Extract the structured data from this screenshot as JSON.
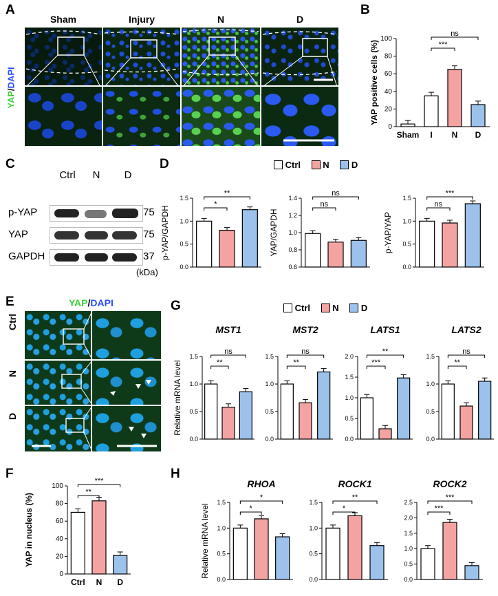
{
  "panels": {
    "A": {
      "label": "A",
      "groups": [
        "Sham",
        "Injury",
        "N",
        "D"
      ],
      "stain_a": "YAP",
      "stain_sep": "/",
      "stain_b": "DAPI"
    },
    "B": {
      "label": "B"
    },
    "C": {
      "label": "C",
      "lanes": [
        "Ctrl",
        "N",
        "D"
      ],
      "bands": [
        "p-YAP",
        "YAP",
        "GAPDH"
      ],
      "sizes": [
        "75",
        "75",
        "37"
      ],
      "unit": "(kDa)"
    },
    "D": {
      "label": "D"
    },
    "E": {
      "label": "E",
      "stain_a": "YAP",
      "stain_sep": "/",
      "stain_b": "DAPI",
      "rows": [
        "Ctrl",
        "N",
        "D"
      ]
    },
    "F": {
      "label": "F"
    },
    "G": {
      "label": "G"
    },
    "H": {
      "label": "H"
    }
  },
  "legend": {
    "items": [
      {
        "name": "Ctrl",
        "color": "#ffffff"
      },
      {
        "name": "N",
        "color": "#f4a3a3"
      },
      {
        "name": "D",
        "color": "#9cc2ec"
      }
    ]
  },
  "colors": {
    "ctrl": "#ffffff",
    "N": "#f4a3a3",
    "D": "#9cc2ec",
    "yap": "#3bd23b",
    "dapi": "#2a4cff"
  },
  "chart_data": [
    {
      "id": "B",
      "type": "bar",
      "ylabel": "YAP positive cells  (%)",
      "categories": [
        "Sham",
        "I",
        "N",
        "D"
      ],
      "values": [
        3,
        35,
        65,
        25
      ],
      "ylim": [
        0,
        100
      ],
      "yticks": [
        0,
        20,
        40,
        60,
        80,
        100
      ],
      "sig": [
        {
          "from": 1,
          "to": 2,
          "label": "***"
        },
        {
          "from": 1,
          "to": 3,
          "label": "ns"
        }
      ]
    },
    {
      "id": "D1",
      "type": "bar",
      "ylabel": "p-YAP/GAPDH",
      "categories": [
        "Ctrl",
        "N",
        "D"
      ],
      "values": [
        1.0,
        0.8,
        1.25
      ],
      "ylim": [
        0,
        1.5
      ],
      "yticks": [
        0,
        0.5,
        1.0,
        1.5
      ],
      "sig": [
        {
          "from": 0,
          "to": 1,
          "label": "*"
        },
        {
          "from": 0,
          "to": 2,
          "label": "**"
        }
      ]
    },
    {
      "id": "D2",
      "type": "bar",
      "ylabel": "YAP/GAPDH",
      "categories": [
        "Ctrl",
        "N",
        "D"
      ],
      "values": [
        0.99,
        0.89,
        0.91
      ],
      "ylim": [
        0.6,
        1.4
      ],
      "yticks": [
        0.6,
        0.8,
        1.0,
        1.2,
        1.4
      ],
      "sig": [
        {
          "from": 0,
          "to": 1,
          "label": "ns"
        },
        {
          "from": 0,
          "to": 2,
          "label": "ns"
        }
      ]
    },
    {
      "id": "D3",
      "type": "bar",
      "ylabel": "p-YAP/YAP",
      "categories": [
        "Ctrl",
        "N",
        "D"
      ],
      "values": [
        1.0,
        0.96,
        1.38
      ],
      "ylim": [
        0,
        1.5
      ],
      "yticks": [
        0,
        0.5,
        1.0,
        1.5
      ],
      "sig": [
        {
          "from": 0,
          "to": 1,
          "label": "ns"
        },
        {
          "from": 0,
          "to": 2,
          "label": "***"
        }
      ]
    },
    {
      "id": "F",
      "type": "bar",
      "ylabel": "YAP in nucleus (%)",
      "categories": [
        "Ctrl",
        "N",
        "D"
      ],
      "values": [
        70,
        83,
        21
      ],
      "ylim": [
        0,
        100
      ],
      "yticks": [
        0,
        20,
        40,
        60,
        80,
        100
      ],
      "sig": [
        {
          "from": 0,
          "to": 1,
          "label": "**"
        },
        {
          "from": 0,
          "to": 2,
          "label": "***"
        }
      ]
    },
    {
      "id": "G1",
      "type": "bar",
      "title": "MST1",
      "ylabel": "Relative mRNA level",
      "categories": [
        "Ctrl",
        "N",
        "D"
      ],
      "values": [
        1.0,
        0.58,
        0.86
      ],
      "ylim": [
        0,
        1.5
      ],
      "yticks": [
        0,
        0.5,
        1.0,
        1.5
      ],
      "sig": [
        {
          "from": 0,
          "to": 1,
          "label": "**"
        },
        {
          "from": 0,
          "to": 2,
          "label": "ns"
        }
      ]
    },
    {
      "id": "G2",
      "type": "bar",
      "title": "MST2",
      "ylabel": "",
      "categories": [
        "Ctrl",
        "N",
        "D"
      ],
      "values": [
        1.0,
        0.66,
        1.22
      ],
      "ylim": [
        0,
        1.5
      ],
      "yticks": [
        0,
        0.5,
        1.0,
        1.5
      ],
      "sig": [
        {
          "from": 0,
          "to": 1,
          "label": "**"
        },
        {
          "from": 0,
          "to": 2,
          "label": "ns"
        }
      ]
    },
    {
      "id": "G3",
      "type": "bar",
      "title": "LATS1",
      "ylabel": "",
      "categories": [
        "Ctrl",
        "N",
        "D"
      ],
      "values": [
        1.0,
        0.25,
        1.48
      ],
      "ylim": [
        0,
        2.0
      ],
      "yticks": [
        0,
        0.5,
        1.0,
        1.5,
        2.0
      ],
      "sig": [
        {
          "from": 0,
          "to": 1,
          "label": "***"
        },
        {
          "from": 0,
          "to": 2,
          "label": "**"
        }
      ]
    },
    {
      "id": "G4",
      "type": "bar",
      "title": "LATS2",
      "ylabel": "",
      "categories": [
        "Ctrl",
        "N",
        "D"
      ],
      "values": [
        1.0,
        0.6,
        1.05
      ],
      "ylim": [
        0,
        1.5
      ],
      "yticks": [
        0,
        0.5,
        1.0,
        1.5
      ],
      "sig": [
        {
          "from": 0,
          "to": 1,
          "label": "**"
        },
        {
          "from": 0,
          "to": 2,
          "label": "ns"
        }
      ]
    },
    {
      "id": "H1",
      "type": "bar",
      "title": "RHOA",
      "ylabel": "Relative mRNA level",
      "categories": [
        "Ctrl",
        "N",
        "D"
      ],
      "values": [
        1.0,
        1.18,
        0.83
      ],
      "ylim": [
        0,
        1.5
      ],
      "yticks": [
        0,
        0.5,
        1.0,
        1.5
      ],
      "sig": [
        {
          "from": 0,
          "to": 1,
          "label": "*"
        },
        {
          "from": 0,
          "to": 2,
          "label": "*"
        }
      ]
    },
    {
      "id": "H2",
      "type": "bar",
      "title": "ROCK1",
      "ylabel": "",
      "categories": [
        "Ctrl",
        "N",
        "D"
      ],
      "values": [
        1.0,
        1.24,
        0.66
      ],
      "ylim": [
        0,
        1.5
      ],
      "yticks": [
        0,
        0.5,
        1.0,
        1.5
      ],
      "sig": [
        {
          "from": 0,
          "to": 1,
          "label": "*"
        },
        {
          "from": 0,
          "to": 2,
          "label": "**"
        }
      ]
    },
    {
      "id": "H3",
      "type": "bar",
      "title": "ROCK2",
      "ylabel": "",
      "categories": [
        "Ctrl",
        "N",
        "D"
      ],
      "values": [
        1.0,
        1.85,
        0.45
      ],
      "ylim": [
        0,
        2.5
      ],
      "yticks": [
        0,
        0.5,
        1.0,
        1.5,
        2.0,
        2.5
      ],
      "sig": [
        {
          "from": 0,
          "to": 1,
          "label": "***"
        },
        {
          "from": 0,
          "to": 2,
          "label": "***"
        }
      ]
    }
  ]
}
